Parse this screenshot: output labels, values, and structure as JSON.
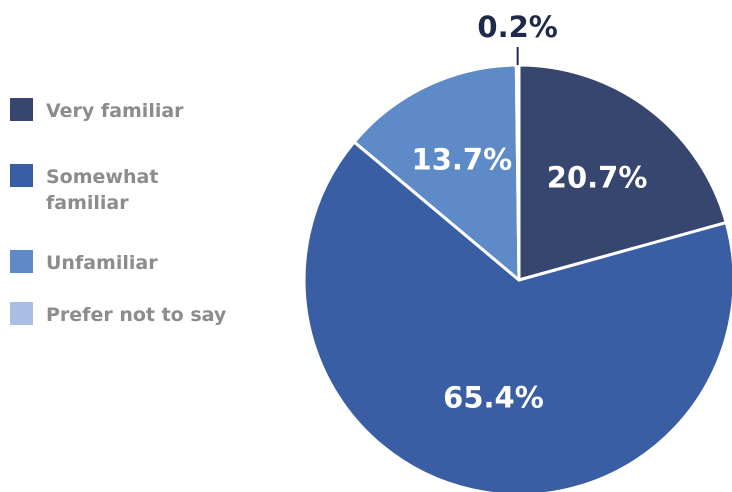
{
  "chart_data": {
    "type": "pie",
    "categories": [
      "Very familiar",
      "Somewhat familiar",
      "Unfamiliar",
      "Prefer not to say"
    ],
    "values": [
      20.7,
      65.4,
      13.7,
      0.2
    ],
    "value_labels": [
      "20.7%",
      "65.4%",
      "13.7%",
      "0.2%"
    ],
    "colors": [
      "#36466f",
      "#3a5ea4",
      "#5f8ac8",
      "#a9bee2"
    ],
    "legend": {
      "placement": "left",
      "items": [
        {
          "lines": [
            "Very familiar"
          ],
          "color": "#36466f"
        },
        {
          "lines": [
            "Somewhat",
            "familiar"
          ],
          "color": "#3a5ea4"
        },
        {
          "lines": [
            "Unfamiliar"
          ],
          "color": "#5f8ac8"
        },
        {
          "lines": [
            "Prefer not to say"
          ],
          "color": "#a9bee2"
        }
      ]
    }
  }
}
